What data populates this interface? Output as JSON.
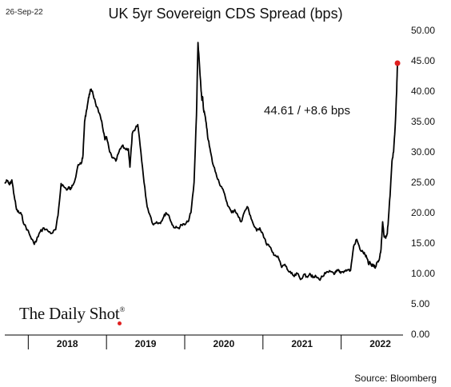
{
  "header": {
    "date": "26-Sep-22"
  },
  "footer": {
    "source": "Source: Bloomberg",
    "brand": "The Daily Shot",
    "brand_mark": "®"
  },
  "chart_data": {
    "type": "line",
    "title": "UK 5yr Sovereign CDS Spread (bps)",
    "xlabel": "",
    "ylabel": "",
    "ylim": [
      0,
      50
    ],
    "yticks": [
      "0.00",
      "5.00",
      "10.00",
      "15.00",
      "20.00",
      "25.00",
      "30.00",
      "35.00",
      "40.00",
      "45.00",
      "50.00"
    ],
    "y_axis_position": "right",
    "x_years": [
      "2018",
      "2019",
      "2020",
      "2021",
      "2022"
    ],
    "xlim": [
      2017.7,
      2022.75
    ],
    "annotation": "44.61  /  +8.6 bps",
    "last_point_color": "#e02020",
    "line_color": "#000000",
    "series": [
      {
        "x": [
          2017.7,
          2017.73,
          2017.76,
          2017.79,
          2017.82,
          2017.85,
          2017.88,
          2017.91,
          2017.95,
          2017.99,
          2018.03,
          2018.07,
          2018.1,
          2018.12,
          2018.15,
          2018.2,
          2018.25,
          2018.3,
          2018.35,
          2018.38,
          2018.42,
          2018.46,
          2018.5,
          2018.52,
          2018.54,
          2018.56,
          2018.6,
          2018.63,
          2018.66,
          2018.68,
          2018.7,
          2018.72,
          2018.74,
          2018.76,
          2018.78,
          2018.8,
          2018.82,
          2018.86,
          2018.9,
          2018.94,
          2018.98,
          2019.0,
          2019.04,
          2019.08,
          2019.12,
          2019.16,
          2019.2,
          2019.24,
          2019.28,
          2019.3,
          2019.33,
          2019.36,
          2019.4,
          2019.44,
          2019.48,
          2019.52,
          2019.56,
          2019.6,
          2019.64,
          2019.68,
          2019.72,
          2019.76,
          2019.8,
          2019.84,
          2019.88,
          2019.92,
          2019.96,
          2020.0,
          2020.04,
          2020.08,
          2020.12,
          2020.15,
          2020.17,
          2020.19,
          2020.2,
          2020.21,
          2020.22,
          2020.23,
          2020.24,
          2020.26,
          2020.28,
          2020.3,
          2020.33,
          2020.36,
          2020.4,
          2020.44,
          2020.48,
          2020.52,
          2020.56,
          2020.6,
          2020.64,
          2020.68,
          2020.72,
          2020.76,
          2020.8,
          2020.84,
          2020.88,
          2020.92,
          2020.96,
          2021.0,
          2021.04,
          2021.08,
          2021.12,
          2021.16,
          2021.2,
          2021.24,
          2021.28,
          2021.32,
          2021.36,
          2021.4,
          2021.44,
          2021.48,
          2021.52,
          2021.56,
          2021.6,
          2021.64,
          2021.68,
          2021.72,
          2021.76,
          2021.8,
          2021.84,
          2021.88,
          2021.92,
          2021.94,
          2021.96,
          2021.98,
          2022.0,
          2022.04,
          2022.08,
          2022.12,
          2022.16,
          2022.2,
          2022.24,
          2022.28,
          2022.31,
          2022.33,
          2022.35,
          2022.37,
          2022.39,
          2022.41,
          2022.43,
          2022.45,
          2022.47,
          2022.49,
          2022.51,
          2022.53,
          2022.55,
          2022.57,
          2022.59,
          2022.61,
          2022.63,
          2022.65,
          2022.67,
          2022.69,
          2022.71,
          2022.72
        ],
        "y": [
          24.8,
          25.3,
          24.6,
          25.4,
          22.8,
          20.5,
          20.0,
          19.8,
          18.0,
          17.2,
          16.0,
          15.0,
          15.2,
          16.0,
          16.8,
          17.5,
          17.0,
          16.6,
          17.2,
          19.5,
          24.8,
          24.2,
          23.8,
          24.2,
          23.8,
          24.5,
          25.5,
          27.5,
          28.0,
          28.2,
          29.5,
          35.0,
          36.5,
          38.0,
          39.5,
          40.2,
          40.0,
          38.0,
          36.5,
          35.0,
          32.0,
          32.5,
          30.0,
          29.0,
          28.5,
          30.0,
          31.0,
          30.5,
          30.5,
          27.5,
          33.0,
          33.5,
          34.5,
          30.0,
          25.0,
          21.0,
          19.5,
          18.0,
          18.5,
          18.3,
          19.0,
          20.0,
          19.5,
          18.0,
          17.5,
          17.5,
          18.0,
          18.0,
          18.5,
          20.0,
          25.0,
          36.0,
          48.0,
          44.0,
          42.0,
          40.0,
          38.5,
          39.0,
          37.0,
          36.0,
          34.0,
          32.0,
          30.0,
          28.0,
          26.5,
          25.0,
          24.0,
          22.5,
          21.0,
          20.0,
          20.5,
          19.5,
          18.5,
          20.0,
          21.0,
          19.5,
          18.0,
          17.0,
          17.5,
          16.5,
          15.0,
          14.5,
          13.5,
          13.0,
          12.5,
          11.0,
          11.5,
          10.5,
          10.0,
          9.5,
          10.0,
          9.0,
          9.8,
          9.5,
          10.0,
          9.3,
          9.5,
          9.0,
          9.5,
          10.0,
          10.2,
          10.3,
          10.0,
          10.3,
          10.5,
          10.2,
          10.2,
          10.4,
          10.6,
          10.5,
          14.5,
          15.6,
          14.0,
          13.5,
          13.0,
          12.5,
          11.5,
          11.8,
          11.2,
          11.5,
          11.0,
          11.5,
          12.0,
          12.5,
          14.0,
          18.5,
          16.0,
          15.8,
          16.5,
          20.0,
          24.0,
          28.5,
          30.0,
          34.0,
          40.0,
          44.61
        ]
      }
    ]
  }
}
